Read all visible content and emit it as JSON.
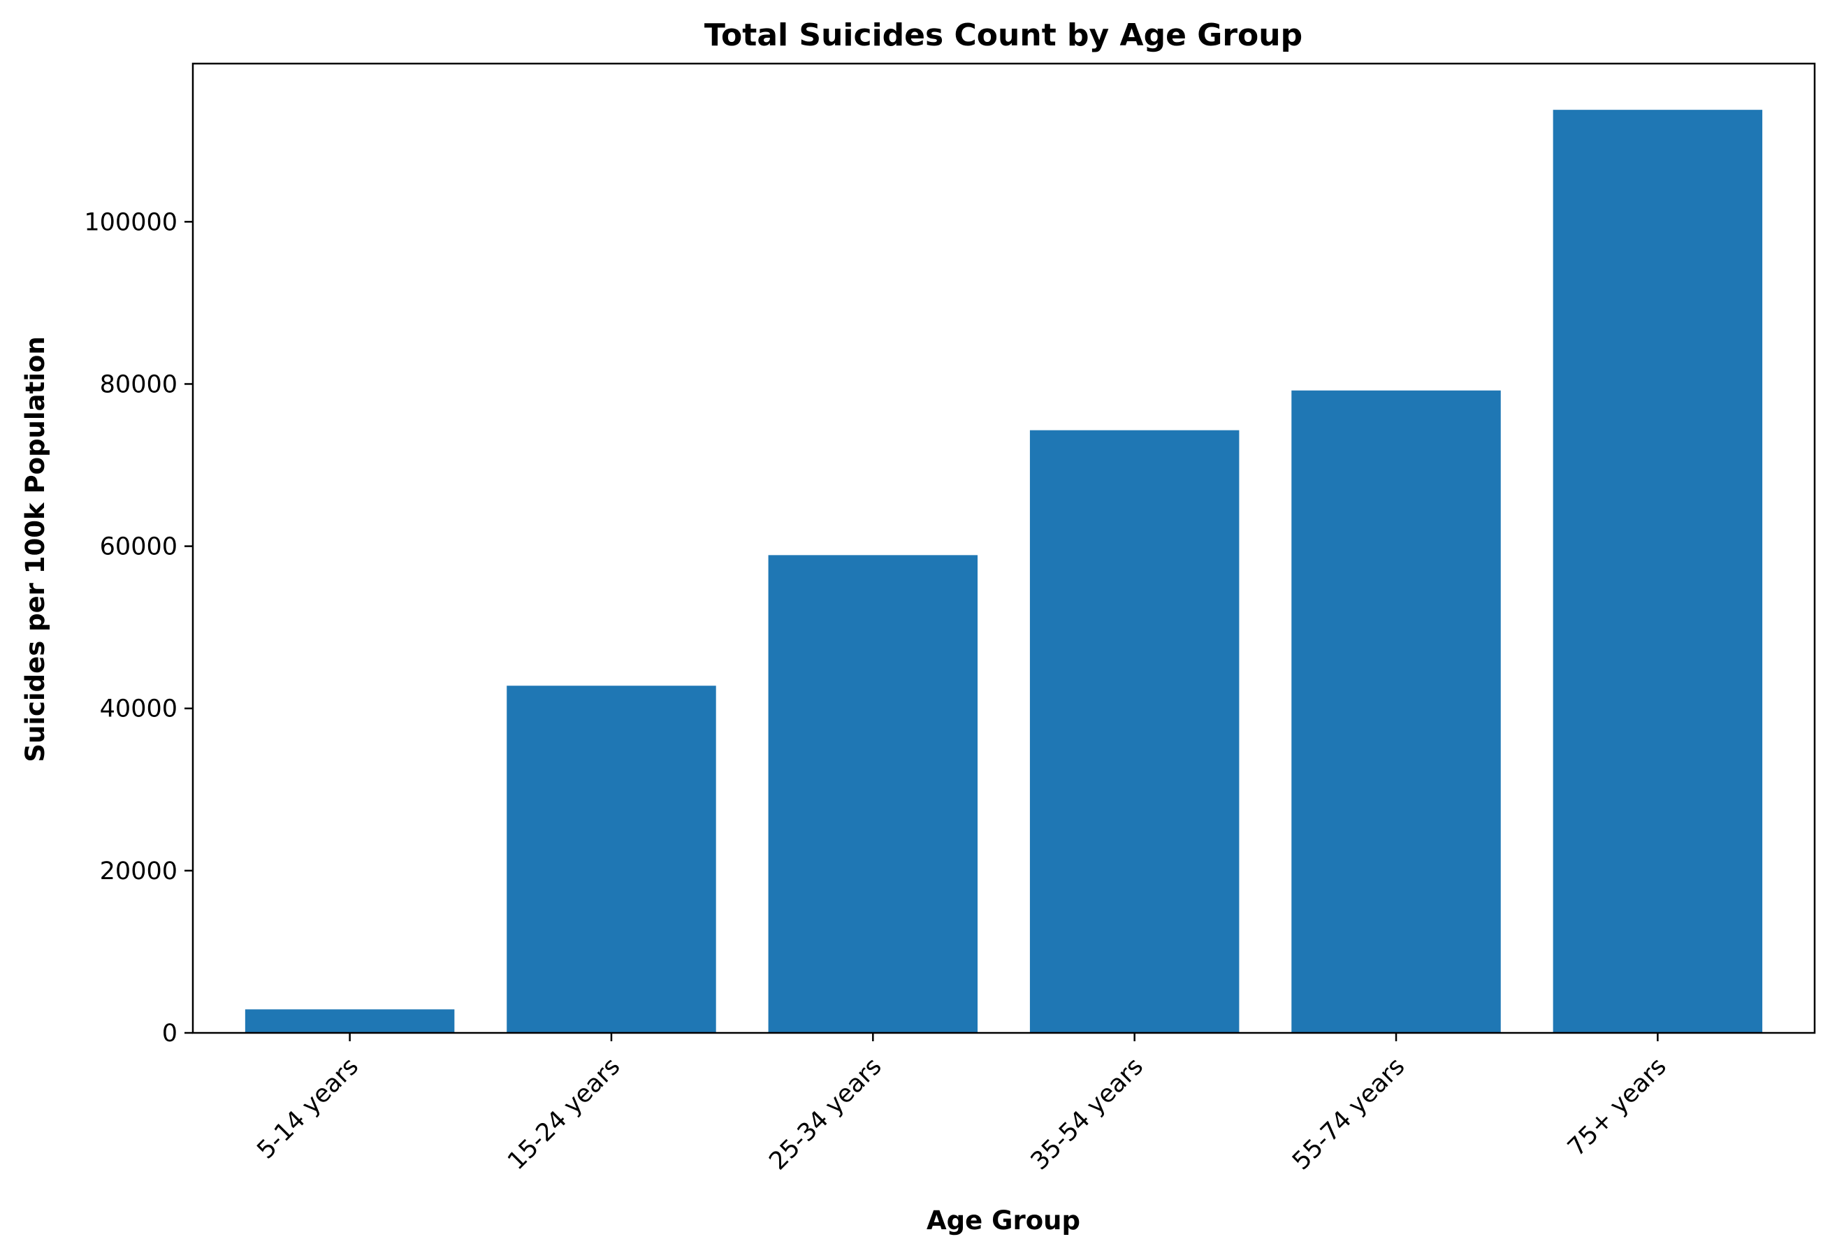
{
  "chart_data": {
    "type": "bar",
    "title": "Total Suicides Count by Age Group",
    "xlabel": "Age Group",
    "ylabel": "Suicides per 100k Population",
    "categories": [
      "5-14 years",
      "15-24 years",
      "25-34 years",
      "35-54 years",
      "55-74 years",
      "75+ years"
    ],
    "values": [
      2900,
      42800,
      58900,
      74300,
      79200,
      113800
    ],
    "ylim": [
      0,
      119500
    ],
    "yticks": [
      0,
      20000,
      40000,
      60000,
      80000,
      100000
    ],
    "ytick_labels": [
      "0",
      "20000",
      "40000",
      "60000",
      "80000",
      "100000"
    ],
    "grid": false,
    "legend": "none",
    "bar_color": "#1f77b4"
  }
}
